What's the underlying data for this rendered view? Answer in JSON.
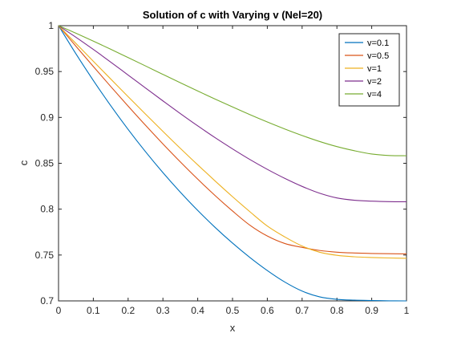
{
  "chart_data": {
    "type": "line",
    "title": "Solution of c with Varying v (Nel=20)",
    "xlabel": "x",
    "ylabel": "c",
    "xlim": [
      0,
      1
    ],
    "ylim": [
      0.7,
      1
    ],
    "xticks": [
      0,
      0.1,
      0.2,
      0.3,
      0.4,
      0.5,
      0.6,
      0.7,
      0.8,
      0.9,
      1
    ],
    "xtick_labels": [
      "0",
      "0.1",
      "0.2",
      "0.3",
      "0.4",
      "0.5",
      "0.6",
      "0.7",
      "0.8",
      "0.9",
      "1"
    ],
    "yticks": [
      0.7,
      0.75,
      0.8,
      0.85,
      0.9,
      0.95,
      1
    ],
    "ytick_labels": [
      "0.7",
      "0.75",
      "0.8",
      "0.85",
      "0.9",
      "0.95",
      "1"
    ],
    "grid": false,
    "legend_position": "top-right",
    "x": [
      0,
      0.05,
      0.1,
      0.15,
      0.2,
      0.25,
      0.3,
      0.35,
      0.4,
      0.45,
      0.5,
      0.55,
      0.6,
      0.65,
      0.7,
      0.75,
      0.8,
      0.85,
      0.9,
      0.95,
      1
    ],
    "series": [
      {
        "name": "v=0.1",
        "color": "#0072BD",
        "values": [
          1.0,
          0.9693,
          0.9403,
          0.9128,
          0.8869,
          0.8626,
          0.8398,
          0.8185,
          0.7986,
          0.7801,
          0.763,
          0.7473,
          0.7331,
          0.7206,
          0.7107,
          0.7044,
          0.7017,
          0.7008,
          0.7004,
          0.7001,
          0.7
        ]
      },
      {
        "name": "v=0.5",
        "color": "#D95319",
        "values": [
          1.0,
          0.9776,
          0.9555,
          0.9337,
          0.9123,
          0.8914,
          0.8711,
          0.8515,
          0.8327,
          0.8148,
          0.798,
          0.7825,
          0.7707,
          0.7626,
          0.7583,
          0.755,
          0.7531,
          0.7522,
          0.7517,
          0.7514,
          0.7512
        ]
      },
      {
        "name": "v=1",
        "color": "#EDB120",
        "values": [
          1.0,
          0.9806,
          0.9612,
          0.9419,
          0.9226,
          0.9036,
          0.8848,
          0.8663,
          0.8483,
          0.8307,
          0.8136,
          0.7972,
          0.7816,
          0.7698,
          0.7598,
          0.7531,
          0.7497,
          0.7481,
          0.7473,
          0.7468,
          0.7464
        ]
      },
      {
        "name": "v=2",
        "color": "#7E2F8E",
        "values": [
          1.0,
          0.9874,
          0.9741,
          0.9603,
          0.9462,
          0.9321,
          0.918,
          0.9042,
          0.8908,
          0.8779,
          0.8657,
          0.8541,
          0.8434,
          0.8336,
          0.8248,
          0.8174,
          0.8122,
          0.8097,
          0.8087,
          0.8082,
          0.8081
        ]
      },
      {
        "name": "v=4",
        "color": "#77AC30",
        "values": [
          1.0,
          0.9918,
          0.9832,
          0.9743,
          0.9652,
          0.9561,
          0.9469,
          0.9378,
          0.9288,
          0.92,
          0.9114,
          0.903,
          0.895,
          0.8874,
          0.8803,
          0.8738,
          0.8682,
          0.8637,
          0.8601,
          0.8585,
          0.8582
        ]
      }
    ]
  }
}
